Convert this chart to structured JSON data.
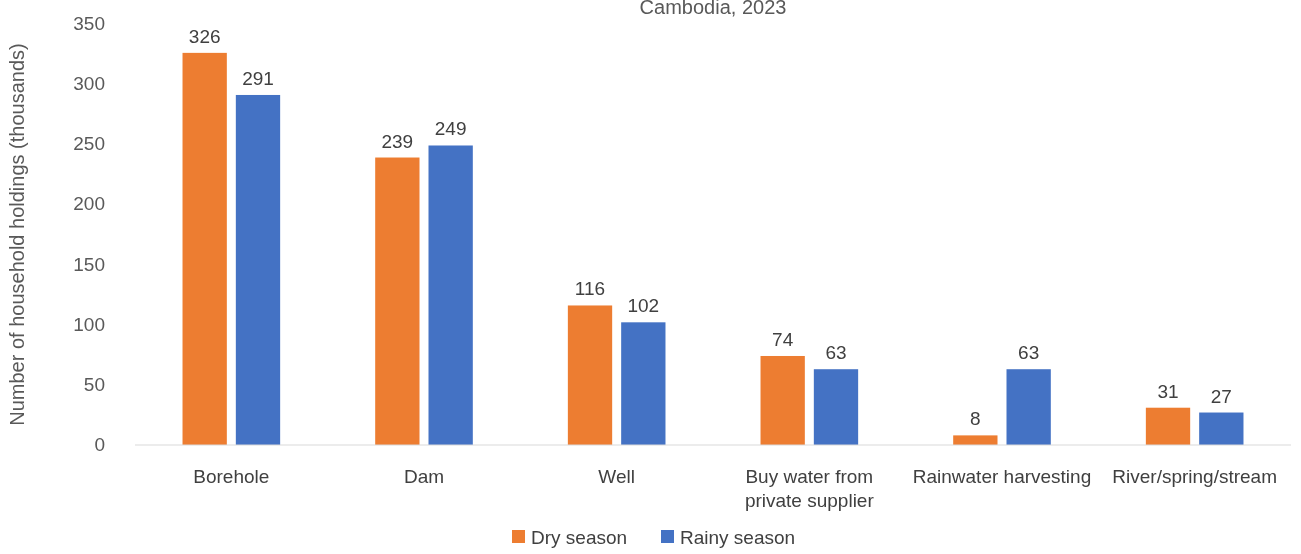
{
  "chart_data": {
    "type": "bar",
    "title": "Cambodia, 2023",
    "ylabel": "Number of household holdings (thousands)",
    "categories": [
      "Borehole",
      "Dam",
      "Well",
      "Buy water from private supplier",
      "Rainwater harvesting",
      "River/spring/stream"
    ],
    "series": [
      {
        "name": "Dry season",
        "color": "#ed7d31",
        "values": [
          326,
          239,
          116,
          74,
          8,
          31
        ]
      },
      {
        "name": "Rainy season",
        "color": "#4472c4",
        "values": [
          291,
          249,
          102,
          63,
          63,
          27
        ]
      }
    ],
    "ylim": [
      0,
      350
    ],
    "yticks": [
      0,
      50,
      100,
      150,
      200,
      250,
      300,
      350
    ],
    "data_labels": true,
    "legend": "bottom",
    "grid": false
  }
}
